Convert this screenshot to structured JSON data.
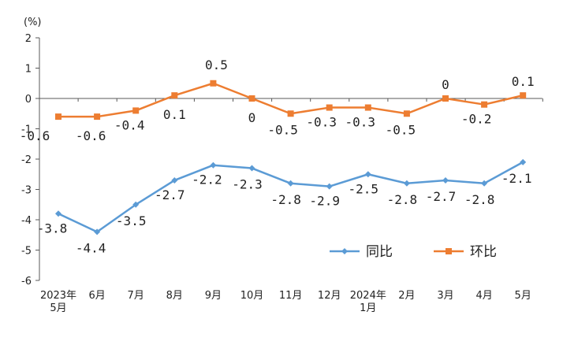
{
  "chart_data": {
    "type": "line",
    "unit_label": "(%)",
    "categories": [
      [
        "2023年",
        "5月"
      ],
      [
        "6月"
      ],
      [
        "7月"
      ],
      [
        "8月"
      ],
      [
        "9月"
      ],
      [
        "10月"
      ],
      [
        "11月"
      ],
      [
        "12月"
      ],
      [
        "2024年",
        "1月"
      ],
      [
        "2月"
      ],
      [
        "3月"
      ],
      [
        "4月"
      ],
      [
        "5月"
      ]
    ],
    "ylim": [
      -6,
      2
    ],
    "yticks": [
      2,
      1,
      0,
      -1,
      -2,
      -3,
      -4,
      -5,
      -6
    ],
    "grid": false,
    "legend_position": "bottom-right",
    "series": [
      {
        "name": "同比",
        "color": "#5B9BD5",
        "marker": "diamond",
        "values": [
          -3.8,
          -4.4,
          -3.5,
          -2.7,
          -2.2,
          -2.3,
          -2.8,
          -2.9,
          -2.5,
          -2.8,
          -2.7,
          -2.8,
          -2.1
        ],
        "labels": [
          "-3.8",
          "-4.4",
          "-3.5",
          "-2.7",
          "-2.2",
          "-2.3",
          "-2.8",
          "-2.9",
          "-2.5",
          "-2.8",
          "-2.7",
          "-2.8",
          "-2.1"
        ]
      },
      {
        "name": "环比",
        "color": "#ED7D31",
        "marker": "square",
        "values": [
          -0.6,
          -0.6,
          -0.4,
          0.1,
          0.5,
          0,
          -0.5,
          -0.3,
          -0.3,
          -0.5,
          0,
          -0.2,
          0.1
        ],
        "labels": [
          "-0.6",
          "-0.6",
          "-0.4",
          "0.1",
          "0.5",
          "0",
          "-0.5",
          "-0.3",
          "-0.3",
          "-0.5",
          "0",
          "-0.2",
          "0.1"
        ]
      }
    ]
  }
}
